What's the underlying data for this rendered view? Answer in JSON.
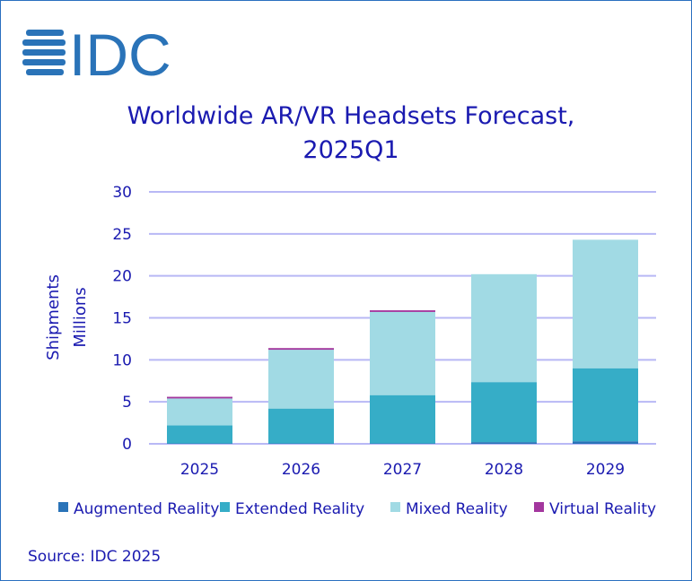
{
  "logo_text": "IDC",
  "source": "Source: IDC 2025",
  "chart_data": {
    "type": "bar",
    "stacked": true,
    "title": "Worldwide AR/VR Headsets Forecast, 2025Q1",
    "title_lines": [
      "Worldwide AR/VR Headsets Forecast,",
      "2025Q1"
    ],
    "ylabel_lines": [
      "Shipments",
      "Millions"
    ],
    "xlabel": "",
    "ylim": [
      0,
      30
    ],
    "yticks": [
      0,
      5,
      10,
      15,
      20,
      25,
      30
    ],
    "grid": true,
    "legend_position": "bottom",
    "categories": [
      "2025",
      "2026",
      "2027",
      "2028",
      "2029"
    ],
    "series": [
      {
        "name": "Augmented Reality",
        "color": "#2a73b8",
        "values": [
          0.05,
          0.05,
          0.05,
          0.2,
          0.3
        ]
      },
      {
        "name": "Extended Reality",
        "color": "#36adc7",
        "values": [
          2.15,
          4.15,
          5.75,
          7.15,
          8.7
        ]
      },
      {
        "name": "Mixed Reality",
        "color": "#a1dae4",
        "values": [
          3.2,
          7.0,
          9.9,
          12.85,
          15.3
        ]
      },
      {
        "name": "Virtual Reality",
        "color": "#a3379e",
        "values": [
          0.2,
          0.2,
          0.2,
          0.0,
          0.0
        ]
      }
    ],
    "grid_color": "#b8b8f5",
    "text_color": "#1a1ab0"
  }
}
